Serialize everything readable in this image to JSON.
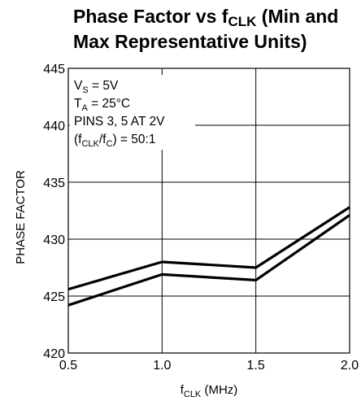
{
  "chart_data": {
    "type": "line",
    "title": {
      "line1_prefix": "Phase Factor vs f",
      "line1_sub": "CLK",
      "line1_suffix": " (Min and",
      "line2": "Max Representative Units)"
    },
    "xlabel": {
      "main": "f",
      "sub": "CLK",
      "rest": " (MHz)"
    },
    "ylabel": "PHASE FACTOR",
    "xlim": [
      0.5,
      2.0
    ],
    "ylim": [
      420,
      445
    ],
    "xticks": [
      0.5,
      1.0,
      1.5,
      2.0
    ],
    "xtick_labels": [
      "0.5",
      "1.0",
      "1.5",
      "2.0"
    ],
    "yticks": [
      420,
      425,
      430,
      435,
      440,
      445
    ],
    "ytick_labels": [
      "420",
      "425",
      "430",
      "435",
      "440",
      "445"
    ],
    "grid": true,
    "annotations": [
      {
        "main": "V",
        "sub": "S",
        "rest": " = 5V"
      },
      {
        "main": "T",
        "sub": "A",
        "rest": " = 25°C"
      },
      {
        "main": "PINS 3, 5 AT 2V",
        "sub": "",
        "rest": ""
      },
      {
        "main": "(f",
        "sub": "CLK",
        "rest": "/f",
        "sub2": "C",
        "rest2": ") = 50:1"
      }
    ],
    "series": [
      {
        "x": [
          0.5,
          1.0,
          1.5,
          2.0
        ],
        "y": [
          425.6,
          428.0,
          427.5,
          432.8
        ]
      },
      {
        "x": [
          0.5,
          1.0,
          1.5,
          2.0
        ],
        "y": [
          424.2,
          426.9,
          426.4,
          432.1
        ]
      }
    ],
    "line_color": "#000000"
  }
}
